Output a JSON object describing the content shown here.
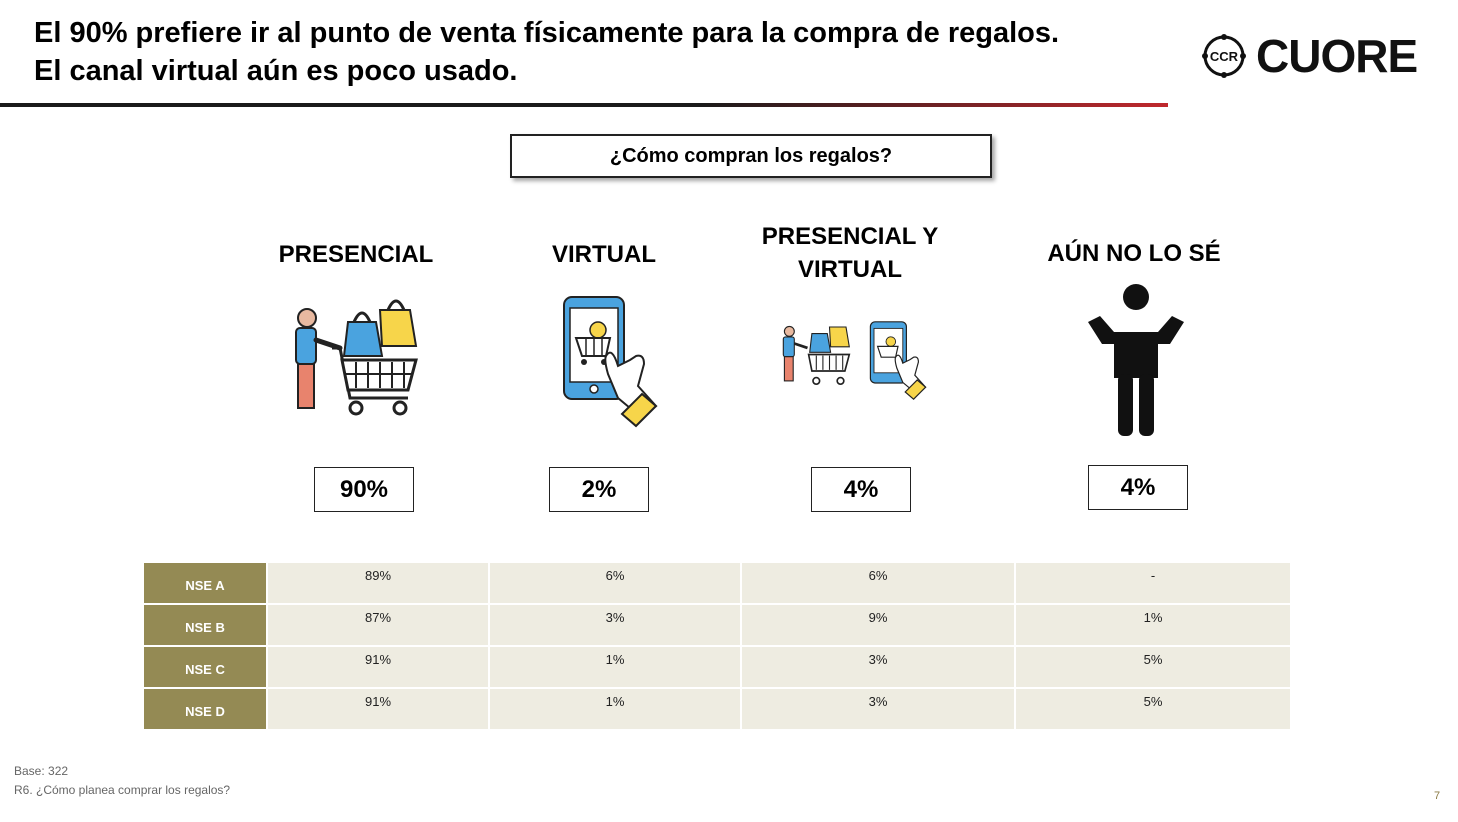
{
  "header": {
    "title_line1": "El 90% prefiere ir al punto de venta físicamente para la compra de regalos.",
    "title_line2": "El canal virtual aún es poco usado."
  },
  "logo": {
    "badge": "CCR",
    "text": "CUORE",
    "accent_color": "#e02020"
  },
  "question": "¿Cómo compran los regalos?",
  "categories": [
    {
      "label_line1": "PRESENCIAL",
      "label_line2": "",
      "value": "90%",
      "icon": "shopping-cart-person-icon"
    },
    {
      "label_line1": "VIRTUAL",
      "label_line2": "",
      "value": "2%",
      "icon": "smartphone-shopping-icon"
    },
    {
      "label_line1": "PRESENCIAL Y",
      "label_line2": "VIRTUAL",
      "value": "4%",
      "icon": "cart-and-phone-icon"
    },
    {
      "label_line1": "AÚN NO LO SÉ",
      "label_line2": "",
      "value": "4%",
      "icon": "shrugging-person-icon"
    }
  ],
  "nse_table": {
    "rows": [
      {
        "label": "NSE A",
        "values": [
          "89%",
          "6%",
          "6%",
          "-"
        ]
      },
      {
        "label": "NSE B",
        "values": [
          "87%",
          "3%",
          "9%",
          "1%"
        ]
      },
      {
        "label": "NSE C",
        "values": [
          "91%",
          "1%",
          "3%",
          "5%"
        ]
      },
      {
        "label": "NSE D",
        "values": [
          "91%",
          "1%",
          "3%",
          "5%"
        ]
      }
    ],
    "label_color": "#948a54",
    "cell_color": "#eeece1"
  },
  "footer": {
    "base": "Base: 322",
    "question_ref": "R6. ¿Cómo planea comprar los regalos?",
    "page_number": "7"
  }
}
